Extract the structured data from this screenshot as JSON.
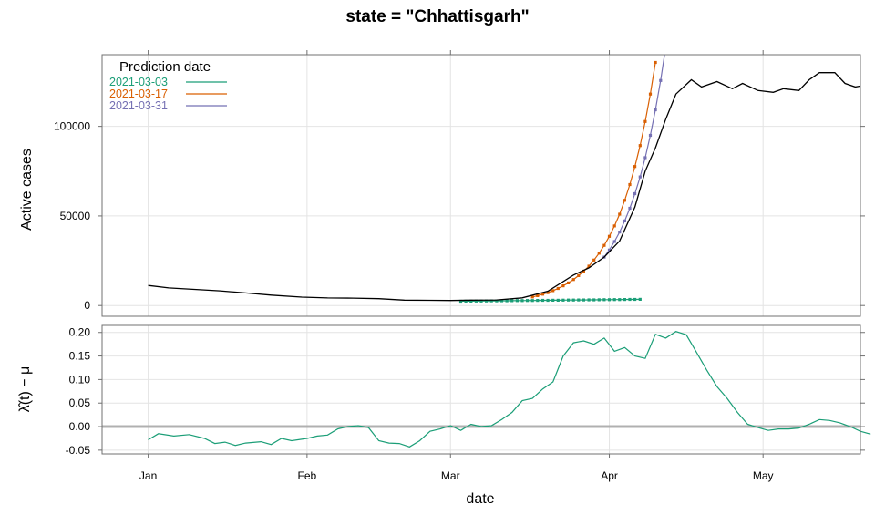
{
  "chart_data": [
    {
      "type": "line",
      "title": "state = \"Chhattisgarh\"",
      "xlabel": "date",
      "ylabel": "Active cases",
      "x_ticks": [
        "Jan",
        "Feb",
        "Mar",
        "Apr",
        "May"
      ],
      "y_ticks": [
        "0",
        "50000",
        "100000"
      ],
      "xlim": [
        "2020-12-23",
        "2021-05-20"
      ],
      "ylim": [
        -6000,
        140000
      ],
      "grid": true,
      "legend": {
        "title": "Prediction date",
        "placement": "top-left"
      },
      "observed": {
        "color": "#000000",
        "points": [
          [
            "2021-01-01",
            11200
          ],
          [
            "2021-01-05",
            9800
          ],
          [
            "2021-01-10",
            9000
          ],
          [
            "2021-01-15",
            8200
          ],
          [
            "2021-01-20",
            7000
          ],
          [
            "2021-01-25",
            5800
          ],
          [
            "2021-01-31",
            4700
          ],
          [
            "2021-02-05",
            4200
          ],
          [
            "2021-02-10",
            4100
          ],
          [
            "2021-02-15",
            3800
          ],
          [
            "2021-02-20",
            3000
          ],
          [
            "2021-02-25",
            2900
          ],
          [
            "2021-03-01",
            2800
          ],
          [
            "2021-03-05",
            3000
          ],
          [
            "2021-03-10",
            3100
          ],
          [
            "2021-03-15",
            4300
          ],
          [
            "2021-03-20",
            8000
          ],
          [
            "2021-03-25",
            17000
          ],
          [
            "2021-03-28",
            21000
          ],
          [
            "2021-03-31",
            27000
          ],
          [
            "2021-04-03",
            36000
          ],
          [
            "2021-04-06",
            55000
          ],
          [
            "2021-04-08",
            75000
          ],
          [
            "2021-04-10",
            88000
          ],
          [
            "2021-04-12",
            104000
          ],
          [
            "2021-04-14",
            118000
          ],
          [
            "2021-04-17",
            126000
          ],
          [
            "2021-04-19",
            122000
          ],
          [
            "2021-04-22",
            125000
          ],
          [
            "2021-04-25",
            121000
          ],
          [
            "2021-04-27",
            124000
          ],
          [
            "2021-04-30",
            120000
          ],
          [
            "2021-05-03",
            119000
          ],
          [
            "2021-05-05",
            121000
          ],
          [
            "2021-05-08",
            120000
          ],
          [
            "2021-05-10",
            126000
          ],
          [
            "2021-05-12",
            130000
          ],
          [
            "2021-05-15",
            130000
          ],
          [
            "2021-05-17",
            124000
          ],
          [
            "2021-05-19",
            122000
          ],
          [
            "2021-05-21",
            123000
          ],
          [
            "2021-05-24",
            116000
          ]
        ]
      },
      "series": [
        {
          "name": "2021-03-03",
          "color": "#1b9e77",
          "start": "2021-03-03",
          "values": [
            2400,
            2430,
            2460,
            2490,
            2520,
            2550,
            2580,
            2610,
            2640,
            2670,
            2700,
            2730,
            2760,
            2790,
            2820,
            2850,
            2880,
            2910,
            2940,
            2970,
            3000,
            3030,
            3060,
            3090,
            3120,
            3150,
            3180,
            3210,
            3240,
            3270,
            3300,
            3330,
            3360,
            3390,
            3420,
            3450
          ]
        },
        {
          "name": "2021-03-17",
          "color": "#d95f02",
          "start": "2021-03-17",
          "values": [
            4800,
            5500,
            6300,
            7200,
            8300,
            9500,
            11000,
            12600,
            14500,
            16700,
            19200,
            22000,
            25400,
            29200,
            33600,
            38600,
            44400,
            51000,
            58700,
            67500,
            77600,
            89300,
            102700,
            118000,
            135700
          ]
        },
        {
          "name": "2021-03-31",
          "color": "#7570b3",
          "start": "2021-03-31",
          "values": [
            27000,
            31000,
            35700,
            41000,
            47200,
            54300,
            62400,
            71800,
            82500,
            95000,
            109200,
            125600,
            144400
          ]
        }
      ]
    },
    {
      "type": "line",
      "ylabel": "λ̂(t) − μ",
      "y_ticks": [
        "-0.05",
        "0.00",
        "0.05",
        "0.10",
        "0.15",
        "0.20"
      ],
      "ylim": [
        -0.058,
        0.215
      ],
      "reference_line": 0,
      "color": "#1b9e77",
      "points": [
        [
          "2021-01-01",
          -0.028
        ],
        [
          "2021-01-03",
          -0.015
        ],
        [
          "2021-01-06",
          -0.02
        ],
        [
          "2021-01-09",
          -0.017
        ],
        [
          "2021-01-12",
          -0.025
        ],
        [
          "2021-01-14",
          -0.036
        ],
        [
          "2021-01-16",
          -0.033
        ],
        [
          "2021-01-18",
          -0.04
        ],
        [
          "2021-01-20",
          -0.035
        ],
        [
          "2021-01-23",
          -0.032
        ],
        [
          "2021-01-25",
          -0.038
        ],
        [
          "2021-01-27",
          -0.025
        ],
        [
          "2021-01-29",
          -0.03
        ],
        [
          "2021-02-01",
          -0.025
        ],
        [
          "2021-02-03",
          -0.02
        ],
        [
          "2021-02-05",
          -0.018
        ],
        [
          "2021-02-07",
          -0.005
        ],
        [
          "2021-02-09",
          0.0
        ],
        [
          "2021-02-11",
          0.002
        ],
        [
          "2021-02-13",
          -0.002
        ],
        [
          "2021-02-15",
          -0.03
        ],
        [
          "2021-02-17",
          -0.035
        ],
        [
          "2021-02-19",
          -0.036
        ],
        [
          "2021-02-21",
          -0.043
        ],
        [
          "2021-02-23",
          -0.03
        ],
        [
          "2021-02-25",
          -0.01
        ],
        [
          "2021-02-27",
          -0.005
        ],
        [
          "2021-03-01",
          0.002
        ],
        [
          "2021-03-03",
          -0.008
        ],
        [
          "2021-03-05",
          0.005
        ],
        [
          "2021-03-07",
          0.0
        ],
        [
          "2021-03-09",
          0.002
        ],
        [
          "2021-03-11",
          0.015
        ],
        [
          "2021-03-13",
          0.03
        ],
        [
          "2021-03-15",
          0.055
        ],
        [
          "2021-03-17",
          0.06
        ],
        [
          "2021-03-19",
          0.08
        ],
        [
          "2021-03-21",
          0.095
        ],
        [
          "2021-03-23",
          0.15
        ],
        [
          "2021-03-25",
          0.178
        ],
        [
          "2021-03-27",
          0.182
        ],
        [
          "2021-03-29",
          0.175
        ],
        [
          "2021-03-31",
          0.188
        ],
        [
          "2021-04-02",
          0.16
        ],
        [
          "2021-04-04",
          0.168
        ],
        [
          "2021-04-06",
          0.15
        ],
        [
          "2021-04-08",
          0.145
        ],
        [
          "2021-04-10",
          0.196
        ],
        [
          "2021-04-12",
          0.188
        ],
        [
          "2021-04-14",
          0.202
        ],
        [
          "2021-04-16",
          0.195
        ],
        [
          "2021-04-18",
          0.158
        ],
        [
          "2021-04-20",
          0.12
        ],
        [
          "2021-04-22",
          0.085
        ],
        [
          "2021-04-24",
          0.06
        ],
        [
          "2021-04-26",
          0.03
        ],
        [
          "2021-04-28",
          0.005
        ],
        [
          "2021-04-30",
          -0.002
        ],
        [
          "2021-05-02",
          -0.008
        ],
        [
          "2021-05-04",
          -0.005
        ],
        [
          "2021-05-06",
          -0.005
        ],
        [
          "2021-05-08",
          -0.003
        ],
        [
          "2021-05-10",
          0.005
        ],
        [
          "2021-05-12",
          0.015
        ],
        [
          "2021-05-14",
          0.013
        ],
        [
          "2021-05-16",
          0.008
        ],
        [
          "2021-05-18",
          0.0
        ],
        [
          "2021-05-20",
          -0.01
        ],
        [
          "2021-05-22",
          -0.016
        ]
      ]
    }
  ]
}
